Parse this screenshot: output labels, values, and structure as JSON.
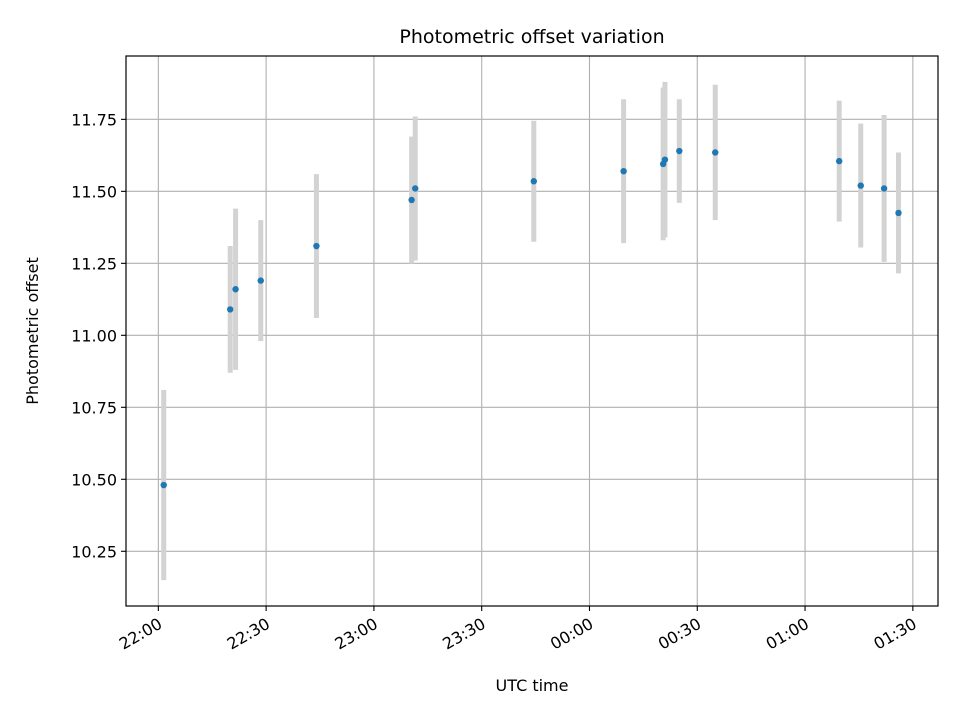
{
  "chart_data": {
    "type": "scatter",
    "title": "Photometric offset variation",
    "xlabel": "UTC time",
    "ylabel": "Photometric offset",
    "grid": true,
    "x_tick_labels": [
      "22:00",
      "22:30",
      "23:00",
      "23:30",
      "00:00",
      "00:30",
      "01:00",
      "01:30"
    ],
    "x_tick_times": [
      "22:00",
      "22:30",
      "23:00",
      "23:30",
      "24:00",
      "24:30",
      "25:00",
      "25:30"
    ],
    "x_range": [
      "21:51",
      "25:37"
    ],
    "y_tick_labels": [
      "10.25",
      "10.50",
      "10.75",
      "11.00",
      "11.25",
      "11.50",
      "11.75"
    ],
    "ylim": [
      10.06,
      11.97
    ],
    "colors": {
      "point": "#1f77b4",
      "errorbar": "#d3d3d3",
      "grid": "#b0b0b0"
    },
    "points": [
      {
        "time": "22:01.5",
        "y": 10.48,
        "err": 0.33
      },
      {
        "time": "22:20.0",
        "y": 11.09,
        "err": 0.22
      },
      {
        "time": "22:21.5",
        "y": 11.16,
        "err": 0.28
      },
      {
        "time": "22:28.5",
        "y": 11.19,
        "err": 0.21
      },
      {
        "time": "22:44.0",
        "y": 11.31,
        "err": 0.25
      },
      {
        "time": "23:10.5",
        "y": 11.47,
        "err": 0.22
      },
      {
        "time": "23:11.5",
        "y": 11.51,
        "err": 0.25
      },
      {
        "time": "23:44.5",
        "y": 11.535,
        "err": 0.21
      },
      {
        "time": "24:09.5",
        "y": 11.57,
        "err": 0.25
      },
      {
        "time": "24:20.5",
        "y": 11.595,
        "err": 0.265
      },
      {
        "time": "24:21.0",
        "y": 11.61,
        "err": 0.27
      },
      {
        "time": "24:25.0",
        "y": 11.64,
        "err": 0.18
      },
      {
        "time": "24:35.0",
        "y": 11.635,
        "err": 0.235
      },
      {
        "time": "25:09.5",
        "y": 11.605,
        "err": 0.21
      },
      {
        "time": "25:15.5",
        "y": 11.52,
        "err": 0.215
      },
      {
        "time": "25:22.0",
        "y": 11.51,
        "err": 0.255
      },
      {
        "time": "25:26.0",
        "y": 11.425,
        "err": 0.21
      }
    ]
  }
}
